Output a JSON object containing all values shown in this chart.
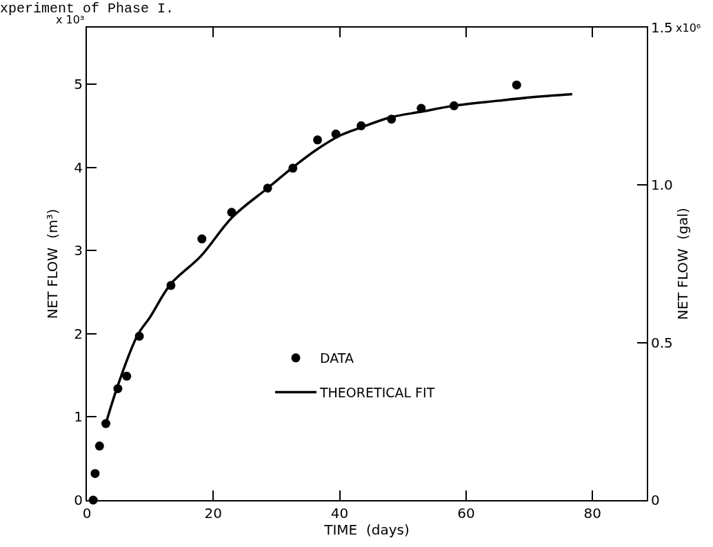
{
  "chart_data": {
    "type": "scatter",
    "title": "xperiment of Phase I.",
    "xlabel": "TIME  (days)",
    "ylabel": "NET FLOW  (m³)",
    "y2label": "NET FLOW  (gal)",
    "annotations": [
      "x 10³",
      "x10⁶"
    ],
    "xlim": [
      0,
      88.6
    ],
    "xticks": [
      0,
      20,
      40,
      60,
      80
    ],
    "ylim": [
      0,
      5.68
    ],
    "yticks": [
      0,
      1,
      2,
      3,
      4,
      5
    ],
    "y2lim": [
      0,
      1.5
    ],
    "y2ticks": [
      {
        "value": 0,
        "label": "0"
      },
      {
        "value": 0.5,
        "label": "0.5"
      },
      {
        "value": 1.0,
        "label": "1.0"
      },
      {
        "value": 1.5,
        "label": "1.5"
      }
    ],
    "legend": "bottom",
    "line_style": "solid",
    "series": [
      {
        "name": "DATA",
        "marker": "circle",
        "color": "#000000",
        "x": [
          1.0,
          1.3,
          2.0,
          3.0,
          4.9,
          6.3,
          8.3,
          13.3,
          18.2,
          22.9,
          28.6,
          32.6,
          36.5,
          39.4,
          43.4,
          48.2,
          52.9,
          58.1,
          68.0
        ],
        "values": [
          0,
          0.32,
          0.65,
          0.92,
          1.34,
          1.49,
          1.97,
          2.58,
          3.14,
          3.46,
          3.75,
          3.99,
          4.33,
          4.4,
          4.5,
          4.58,
          4.71,
          4.74,
          4.99
        ]
      },
      {
        "name": "THEORETICAL FIT",
        "type": "line",
        "marker": "none",
        "color": "#000000",
        "x": [
          3.0,
          5.0,
          8.0,
          10.0,
          13.3,
          18.0,
          23.0,
          28.6,
          32.6,
          36.5,
          40.0,
          43.4,
          48.0,
          53.0,
          58.0,
          65.0,
          70.0,
          76.8
        ],
        "values": [
          0.92,
          1.4,
          1.98,
          2.2,
          2.6,
          2.93,
          3.4,
          3.75,
          4.0,
          4.22,
          4.38,
          4.48,
          4.6,
          4.67,
          4.74,
          4.8,
          4.84,
          4.88
        ]
      }
    ]
  }
}
